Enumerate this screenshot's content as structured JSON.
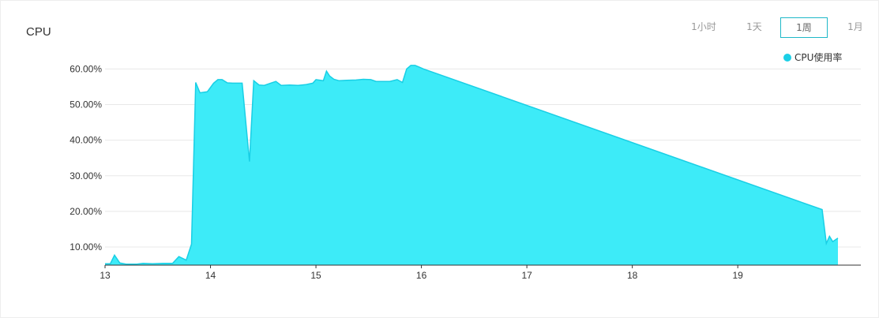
{
  "panel": {
    "title": "CPU"
  },
  "range_tabs": [
    {
      "label": "1小时",
      "active": false
    },
    {
      "label": "1天",
      "active": false
    },
    {
      "label": "1周",
      "active": true
    },
    {
      "label": "1月",
      "active": false
    }
  ],
  "colors": {
    "fill": "#3debf8",
    "stroke": "#19cfe5",
    "grid": "#e8e8e8",
    "accent": "#1fb8c8"
  },
  "chart_data": {
    "type": "area",
    "title": "",
    "xlabel": "",
    "ylabel": "",
    "legend_placement": "top-right",
    "grid": true,
    "xlim": [
      13,
      19.95
    ],
    "ylim": [
      5,
      60
    ],
    "x_ticks": [
      "13",
      "14",
      "15",
      "16",
      "17",
      "18",
      "19"
    ],
    "x_tick_values": [
      13,
      14,
      15,
      16,
      17,
      18,
      19
    ],
    "y_ticks": [
      "10.00%",
      "20.00%",
      "30.00%",
      "40.00%",
      "50.00%",
      "60.00%"
    ],
    "y_tick_values": [
      10,
      20,
      30,
      40,
      50,
      60
    ],
    "series": [
      {
        "name": "CPU使用率",
        "x": [
          13.0,
          13.05,
          13.09,
          13.14,
          13.2,
          13.3,
          13.36,
          13.45,
          13.55,
          13.64,
          13.7,
          13.77,
          13.82,
          13.86,
          13.9,
          13.97,
          14.03,
          14.07,
          14.11,
          14.16,
          14.21,
          14.3,
          14.37,
          14.41,
          14.46,
          14.51,
          14.57,
          14.62,
          14.67,
          14.75,
          14.83,
          14.9,
          14.97,
          15.0,
          15.07,
          15.1,
          15.13,
          15.17,
          15.22,
          15.29,
          15.38,
          15.45,
          15.52,
          15.57,
          15.62,
          15.7,
          15.77,
          15.82,
          15.86,
          15.9,
          15.94,
          15.98,
          16.02,
          19.8,
          19.84,
          19.87,
          19.9,
          19.95
        ],
        "values": [
          5.3,
          5.3,
          7.7,
          5.5,
          5.2,
          5.2,
          5.4,
          5.3,
          5.4,
          5.4,
          7.3,
          6.3,
          10.8,
          56.2,
          53.3,
          53.6,
          56.0,
          57.0,
          57.0,
          56.1,
          56.0,
          56.0,
          34.0,
          56.7,
          55.5,
          55.4,
          56.0,
          56.5,
          55.4,
          55.5,
          55.4,
          55.6,
          56.0,
          57.0,
          56.7,
          59.4,
          58.0,
          57.1,
          56.7,
          56.8,
          56.9,
          57.1,
          57.0,
          56.5,
          56.5,
          56.5,
          57.0,
          56.2,
          60.0,
          61.0,
          61.0,
          60.5,
          60.0,
          20.5,
          11.0,
          13.0,
          11.5,
          12.5
        ]
      }
    ]
  }
}
